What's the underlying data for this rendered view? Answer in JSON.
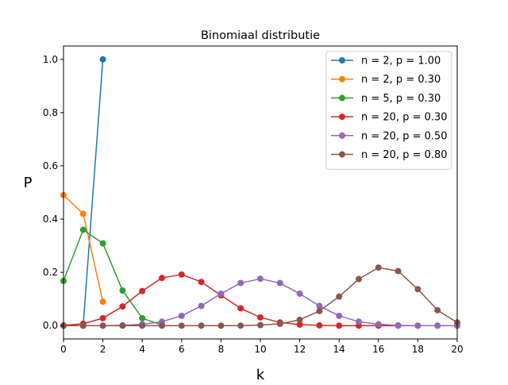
{
  "chart_data": {
    "type": "line",
    "title": "Binomiaal distributie",
    "xlabel": "k",
    "ylabel": "P",
    "xlim": [
      0,
      20
    ],
    "ylim": [
      -0.05,
      1.05
    ],
    "xticks": [
      "0",
      "2",
      "4",
      "6",
      "8",
      "10",
      "12",
      "14",
      "16",
      "18",
      "20"
    ],
    "yticks": [
      "0.0",
      "0.2",
      "0.4",
      "0.6",
      "0.8",
      "1.0"
    ],
    "grid": false,
    "legend_position": "top-right",
    "series": [
      {
        "name": "n = 2, p = 1.00",
        "color": "#1f77b4",
        "x": [
          0,
          1,
          2
        ],
        "y": [
          0.0,
          0.0,
          1.0
        ]
      },
      {
        "name": "n = 2, p = 0.30",
        "color": "#ff7f0e",
        "x": [
          0,
          1,
          2
        ],
        "y": [
          0.49,
          0.42,
          0.09
        ]
      },
      {
        "name": "n = 5, p = 0.30",
        "color": "#2ca02c",
        "x": [
          0,
          1,
          2,
          3,
          4,
          5
        ],
        "y": [
          0.168,
          0.36,
          0.309,
          0.132,
          0.028,
          0.002
        ]
      },
      {
        "name": "n = 20, p = 0.30",
        "color": "#d62728",
        "x": [
          0,
          1,
          2,
          3,
          4,
          5,
          6,
          7,
          8,
          9,
          10,
          11,
          12,
          13,
          14,
          15,
          16,
          17,
          18,
          19,
          20
        ],
        "y": [
          0.001,
          0.007,
          0.028,
          0.072,
          0.13,
          0.179,
          0.192,
          0.164,
          0.114,
          0.065,
          0.031,
          0.012,
          0.004,
          0.001,
          0.0,
          0.0,
          0.0,
          0.0,
          0.0,
          0.0,
          0.0
        ]
      },
      {
        "name": "n = 20, p = 0.50",
        "color": "#9467bd",
        "x": [
          0,
          1,
          2,
          3,
          4,
          5,
          6,
          7,
          8,
          9,
          10,
          11,
          12,
          13,
          14,
          15,
          16,
          17,
          18,
          19,
          20
        ],
        "y": [
          0.0,
          0.0,
          0.0,
          0.001,
          0.005,
          0.015,
          0.037,
          0.074,
          0.12,
          0.16,
          0.176,
          0.16,
          0.12,
          0.074,
          0.037,
          0.015,
          0.005,
          0.001,
          0.0,
          0.0,
          0.0
        ]
      },
      {
        "name": "n = 20, p = 0.80",
        "color": "#8c564b",
        "x": [
          0,
          1,
          2,
          3,
          4,
          5,
          6,
          7,
          8,
          9,
          10,
          11,
          12,
          13,
          14,
          15,
          16,
          17,
          18,
          19,
          20
        ],
        "y": [
          0.0,
          0.0,
          0.0,
          0.0,
          0.0,
          0.0,
          0.0,
          0.0,
          0.0,
          0.0,
          0.002,
          0.007,
          0.022,
          0.055,
          0.109,
          0.175,
          0.218,
          0.205,
          0.137,
          0.058,
          0.012
        ]
      }
    ]
  }
}
